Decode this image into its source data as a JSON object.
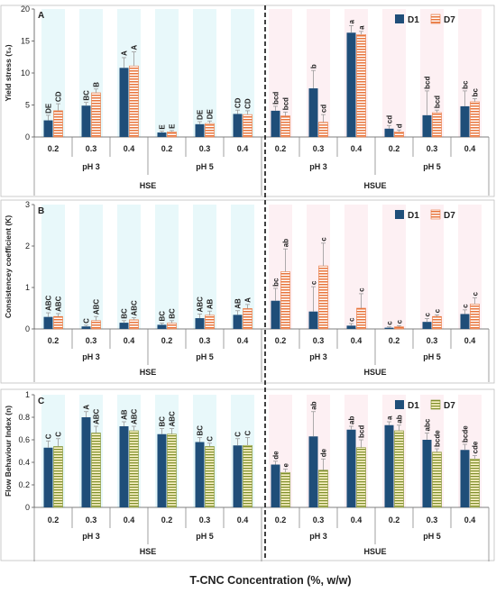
{
  "colors": {
    "d1": "#1f4e79",
    "d7_orange": "#e8743b",
    "d7_green": "#7f8f2a",
    "hse_bg": "#d6f3f6",
    "hsue_bg": "#fbe3ea"
  },
  "x_axis_title": "T-CNC Concentration (%, w/w)",
  "chart_data": [
    {
      "type": "bar",
      "panel": "A",
      "ylabel": "Yield stress (τ₀)",
      "ylim": [
        0,
        20
      ],
      "yticks": [
        0,
        5,
        10,
        15,
        20
      ],
      "legend": [
        "D1",
        "D7"
      ],
      "legend_position": "top-right",
      "d7_style": "orange",
      "categories": [
        "0.2",
        "0.3",
        "0.4",
        "0.2",
        "0.3",
        "0.4",
        "0.2",
        "0.3",
        "0.4",
        "0.2",
        "0.3",
        "0.4"
      ],
      "ph_groups": [
        "pH 3",
        "pH 5",
        "pH 3",
        "pH 5"
      ],
      "treatments": [
        "HSE",
        "HSUE"
      ],
      "series": [
        {
          "name": "D1",
          "values": [
            2.6,
            4.9,
            10.8,
            0.7,
            2.0,
            3.6,
            4.1,
            7.6,
            16.3,
            1.3,
            3.4,
            4.8
          ],
          "errors": [
            0.8,
            0.5,
            1.6,
            0.2,
            0.4,
            0.6,
            0.7,
            2.8,
            1.1,
            0.5,
            3.8,
            2.4
          ],
          "labels": [
            "DE",
            "BC",
            "A",
            "E",
            "DE",
            "CD",
            "bcd",
            "b",
            "a",
            "cd",
            "bcd",
            "bc"
          ]
        },
        {
          "name": "D7",
          "values": [
            4.1,
            6.9,
            11.1,
            0.8,
            2.1,
            3.5,
            3.3,
            2.3,
            16.0,
            0.8,
            3.8,
            5.5
          ],
          "errors": [
            1.1,
            0.6,
            2.2,
            0.2,
            0.4,
            0.6,
            0.6,
            1.2,
            0.5,
            0.3,
            0.4,
            0.5
          ],
          "labels": [
            "CD",
            "B",
            "A",
            "E",
            "DE",
            "CD",
            "bcd",
            "cd",
            "a",
            "d",
            "bcd",
            "bc"
          ]
        }
      ]
    },
    {
      "type": "bar",
      "panel": "B",
      "ylabel": "Consistencey coefficient (K)",
      "ylim": [
        0,
        3
      ],
      "yticks": [
        0,
        1,
        2,
        3
      ],
      "legend": [
        "D1",
        "D7"
      ],
      "legend_position": "top-right",
      "d7_style": "orange",
      "categories": [
        "0.2",
        "0.3",
        "0.4",
        "0.2",
        "0.3",
        "0.4",
        "0.2",
        "0.3",
        "0.4",
        "0.2",
        "0.3",
        "0.4"
      ],
      "ph_groups": [
        "pH 3",
        "pH 5",
        "pH 3",
        "pH 5"
      ],
      "treatments": [
        "HSE",
        "HSUE"
      ],
      "series": [
        {
          "name": "D1",
          "values": [
            0.29,
            0.06,
            0.15,
            0.1,
            0.26,
            0.34,
            0.68,
            0.42,
            0.08,
            0.03,
            0.17,
            0.36
          ],
          "errors": [
            0.1,
            0.03,
            0.05,
            0.04,
            0.1,
            0.1,
            0.3,
            0.6,
            0.05,
            0.02,
            0.08,
            0.1
          ],
          "labels": [
            "ABC",
            "C",
            "BC",
            "BC",
            "ABC",
            "AB",
            "bc",
            "c",
            "c",
            "c",
            "c",
            "c"
          ]
        },
        {
          "name": "D7",
          "values": [
            0.3,
            0.2,
            0.22,
            0.14,
            0.33,
            0.49,
            1.38,
            1.52,
            0.5,
            0.05,
            0.3,
            0.6
          ],
          "errors": [
            0.07,
            0.1,
            0.05,
            0.06,
            0.1,
            0.1,
            0.55,
            0.55,
            0.35,
            0.03,
            0.04,
            0.15
          ],
          "labels": [
            "ABC",
            "ABC",
            "ABC",
            "BC",
            "AB",
            "A",
            "ab",
            "c",
            "c",
            "c",
            "c",
            "c"
          ]
        }
      ]
    },
    {
      "type": "bar",
      "panel": "C",
      "ylabel": "Flow Behaviour Index (n)",
      "ylim": [
        0,
        1
      ],
      "yticks": [
        0,
        0.2,
        0.4,
        0.6,
        0.8,
        1
      ],
      "legend": [
        "D1",
        "D7"
      ],
      "legend_position": "top-right",
      "d7_style": "green",
      "categories": [
        "0.2",
        "0.3",
        "0.4",
        "0.2",
        "0.3",
        "0.4",
        "0.2",
        "0.3",
        "0.4",
        "0.2",
        "0.3",
        "0.4"
      ],
      "ph_groups": [
        "pH 3",
        "pH 5",
        "pH 3",
        "pH 5"
      ],
      "treatments": [
        "HSE",
        "HSUE"
      ],
      "series": [
        {
          "name": "D1",
          "values": [
            0.53,
            0.8,
            0.72,
            0.65,
            0.58,
            0.55,
            0.38,
            0.63,
            0.69,
            0.73,
            0.6,
            0.51
          ],
          "errors": [
            0.06,
            0.05,
            0.04,
            0.05,
            0.04,
            0.06,
            0.03,
            0.22,
            0.03,
            0.03,
            0.06,
            0.05
          ],
          "labels": [
            "C",
            "A",
            "AB",
            "BC",
            "BC",
            "C",
            "de",
            "ab",
            "ab",
            "a",
            "abc",
            "bcde"
          ]
        },
        {
          "name": "D7",
          "values": [
            0.54,
            0.66,
            0.68,
            0.65,
            0.54,
            0.55,
            0.31,
            0.33,
            0.53,
            0.68,
            0.49,
            0.43
          ],
          "errors": [
            0.07,
            0.06,
            0.04,
            0.05,
            0.03,
            0.07,
            0.03,
            0.1,
            0.07,
            0.05,
            0.03,
            0.03
          ],
          "labels": [
            "C",
            "ABC",
            "ABC",
            "ABC",
            "C",
            "C",
            "e",
            "de",
            "bcd",
            "ab",
            "bcde",
            "cde"
          ]
        }
      ]
    }
  ]
}
